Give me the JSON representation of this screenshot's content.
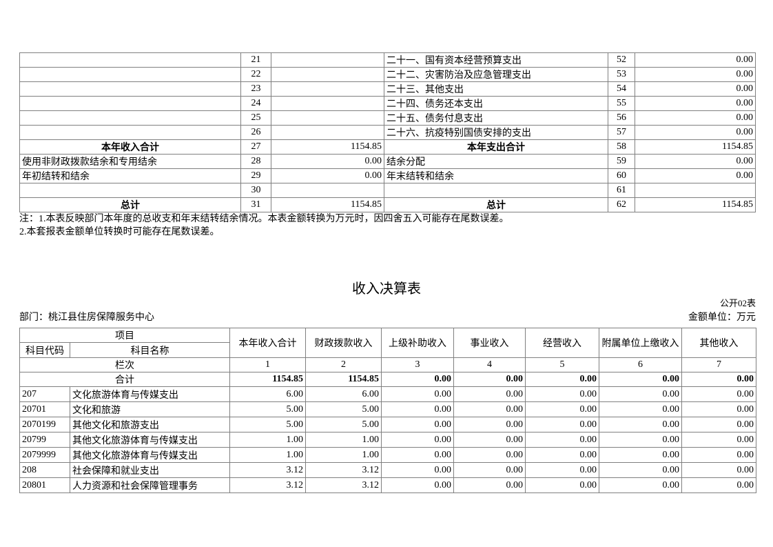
{
  "summary_table": {
    "left_rows": [
      {
        "label": "",
        "line": "21",
        "value": "",
        "emphasis": false
      },
      {
        "label": "",
        "line": "22",
        "value": "",
        "emphasis": false
      },
      {
        "label": "",
        "line": "23",
        "value": "",
        "emphasis": false
      },
      {
        "label": "",
        "line": "24",
        "value": "",
        "emphasis": false
      },
      {
        "label": "",
        "line": "25",
        "value": "",
        "emphasis": false
      },
      {
        "label": "",
        "line": "26",
        "value": "",
        "emphasis": false
      },
      {
        "label": "本年收入合计",
        "line": "27",
        "value": "1154.85",
        "emphasis": true
      },
      {
        "label": "使用非财政拨款结余和专用结余",
        "line": "28",
        "value": "0.00",
        "emphasis": false
      },
      {
        "label": "年初结转和结余",
        "line": "29",
        "value": "0.00",
        "emphasis": false
      },
      {
        "label": "",
        "line": "30",
        "value": "",
        "emphasis": false
      },
      {
        "label": "总计",
        "line": "31",
        "value": "1154.85",
        "emphasis": true
      }
    ],
    "right_rows": [
      {
        "label": "二十一、国有资本经营预算支出",
        "line": "52",
        "value": "0.00",
        "emphasis": false
      },
      {
        "label": "二十二、灾害防治及应急管理支出",
        "line": "53",
        "value": "0.00",
        "emphasis": false
      },
      {
        "label": "二十三、其他支出",
        "line": "54",
        "value": "0.00",
        "emphasis": false
      },
      {
        "label": "二十四、债务还本支出",
        "line": "55",
        "value": "0.00",
        "emphasis": false
      },
      {
        "label": "二十五、债务付息支出",
        "line": "56",
        "value": "0.00",
        "emphasis": false
      },
      {
        "label": "二十六、抗疫特别国债安排的支出",
        "line": "57",
        "value": "0.00",
        "emphasis": false
      },
      {
        "label": "本年支出合计",
        "line": "58",
        "value": "1154.85",
        "emphasis": true
      },
      {
        "label": "结余分配",
        "line": "59",
        "value": "0.00",
        "emphasis": false
      },
      {
        "label": "年末结转和结余",
        "line": "60",
        "value": "0.00",
        "emphasis": false
      },
      {
        "label": "",
        "line": "61",
        "value": "",
        "emphasis": false
      },
      {
        "label": "总计",
        "line": "62",
        "value": "1154.85",
        "emphasis": true
      }
    ],
    "notes": [
      "注：1.本表反映部门本年度的总收支和年末结转结余情况。本表金额转换为万元时，因四舍五入可能存在尾数误差。",
      "2.本套报表金额单位转换时可能存在尾数误差。"
    ]
  },
  "income_table": {
    "title": "收入决算表",
    "table_code": "公开02表",
    "department": "部门：桃江县住房保障服务中心",
    "unit_note": "金额单位：万元",
    "header": {
      "project": "项目",
      "subject_code": "科目代码",
      "subject_name": "科目名称",
      "columns": [
        "本年收入合计",
        "财政拨款收入",
        "上级补助收入",
        "事业收入",
        "经营收入",
        "附属单位上缴收入",
        "其他收入"
      ],
      "lanci_label": "栏次",
      "lanci_numbers": [
        "1",
        "2",
        "3",
        "4",
        "5",
        "6",
        "7"
      ]
    },
    "total_row": {
      "label": "合计",
      "values": [
        "1154.85",
        "1154.85",
        "0.00",
        "0.00",
        "0.00",
        "0.00",
        "0.00"
      ]
    },
    "rows": [
      {
        "code": "207",
        "name": "文化旅游体育与传媒支出",
        "values": [
          "6.00",
          "6.00",
          "0.00",
          "0.00",
          "0.00",
          "0.00",
          "0.00"
        ]
      },
      {
        "code": "20701",
        "name": "文化和旅游",
        "values": [
          "5.00",
          "5.00",
          "0.00",
          "0.00",
          "0.00",
          "0.00",
          "0.00"
        ]
      },
      {
        "code": "2070199",
        "name": "其他文化和旅游支出",
        "values": [
          "5.00",
          "5.00",
          "0.00",
          "0.00",
          "0.00",
          "0.00",
          "0.00"
        ]
      },
      {
        "code": "20799",
        "name": "其他文化旅游体育与传媒支出",
        "values": [
          "1.00",
          "1.00",
          "0.00",
          "0.00",
          "0.00",
          "0.00",
          "0.00"
        ]
      },
      {
        "code": "2079999",
        "name": "其他文化旅游体育与传媒支出",
        "values": [
          "1.00",
          "1.00",
          "0.00",
          "0.00",
          "0.00",
          "0.00",
          "0.00"
        ]
      },
      {
        "code": "208",
        "name": "社会保障和就业支出",
        "values": [
          "3.12",
          "3.12",
          "0.00",
          "0.00",
          "0.00",
          "0.00",
          "0.00"
        ]
      },
      {
        "code": "20801",
        "name": "人力资源和社会保障管理事务",
        "values": [
          "3.12",
          "3.12",
          "0.00",
          "0.00",
          "0.00",
          "0.00",
          "0.00"
        ]
      }
    ]
  }
}
